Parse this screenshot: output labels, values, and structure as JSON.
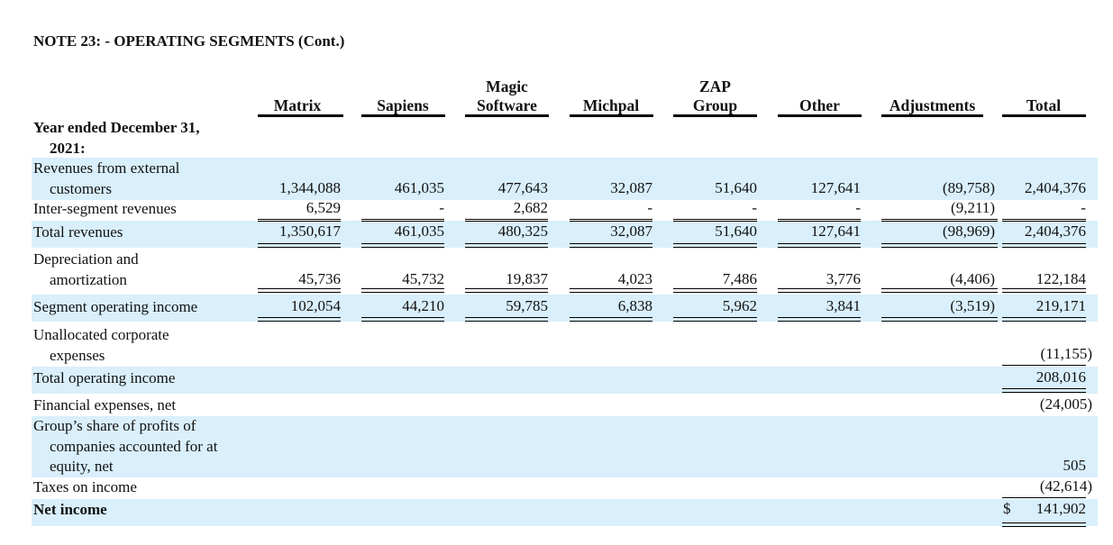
{
  "note_title": "NOTE 23: - OPERATING SEGMENTS (Cont.)",
  "columns": [
    {
      "line1": "",
      "line2": "Matrix"
    },
    {
      "line1": "",
      "line2": "Sapiens"
    },
    {
      "line1": "Magic",
      "line2": "Software"
    },
    {
      "line1": "",
      "line2": "Michpal"
    },
    {
      "line1": "ZAP",
      "line2": "Group"
    },
    {
      "line1": "",
      "line2": "Other"
    },
    {
      "line1": "",
      "line2": "Adjustments"
    },
    {
      "line1": "",
      "line2": "Total"
    }
  ],
  "rows": {
    "year_header": {
      "line1": "Year ended December 31,",
      "line2": "2021:"
    },
    "revenues_external": {
      "line1": "Revenues from external",
      "line2": "customers",
      "values": [
        "1,344,088",
        "461,035",
        "477,643",
        "32,087",
        "51,640",
        "127,641",
        "(89,758)",
        "2,404,376"
      ]
    },
    "inter_segment": {
      "label": "Inter-segment revenues",
      "values": [
        "6,529",
        "-",
        "2,682",
        "-",
        "-",
        "-",
        "(9,211)",
        "-"
      ]
    },
    "total_revenues": {
      "label": "Total revenues",
      "values": [
        "1,350,617",
        "461,035",
        "480,325",
        "32,087",
        "51,640",
        "127,641",
        "(98,969)",
        "2,404,376"
      ]
    },
    "depreciation": {
      "line1": "Depreciation and",
      "line2": "amortization",
      "values": [
        "45,736",
        "45,732",
        "19,837",
        "4,023",
        "7,486",
        "3,776",
        "(4,406)",
        "122,184"
      ]
    },
    "segment_income": {
      "label": "Segment operating income",
      "values": [
        "102,054",
        "44,210",
        "59,785",
        "6,838",
        "5,962",
        "3,841",
        "(3,519)",
        "219,171"
      ]
    },
    "unallocated": {
      "line1": "Unallocated corporate",
      "line2": "expenses",
      "total": "(11,155)"
    },
    "total_operating": {
      "label": "Total operating income",
      "total": "208,016"
    },
    "financial_expenses": {
      "label": "Financial expenses, net",
      "total": "(24,005)"
    },
    "group_share": {
      "line1": "Group’s share of profits of",
      "line2": "companies accounted for at",
      "line3": "equity, net",
      "total": "505"
    },
    "taxes": {
      "label": "Taxes on income",
      "total": "(42,614)"
    },
    "net_income": {
      "label": "Net income",
      "currency": "$",
      "total": "141,902"
    }
  }
}
